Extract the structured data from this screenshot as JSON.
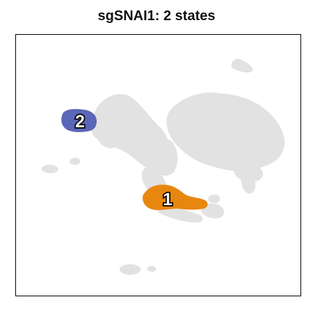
{
  "chart_data": {
    "type": "scatter",
    "title": "sgSNAI1: 2 states",
    "xlabel": "",
    "ylabel": "",
    "grid": false,
    "legend": "none",
    "background_color": "#e2e2e2",
    "states": [
      {
        "label": "1",
        "color": "#e8870f"
      },
      {
        "label": "2",
        "color": "#5a66b8"
      }
    ]
  }
}
